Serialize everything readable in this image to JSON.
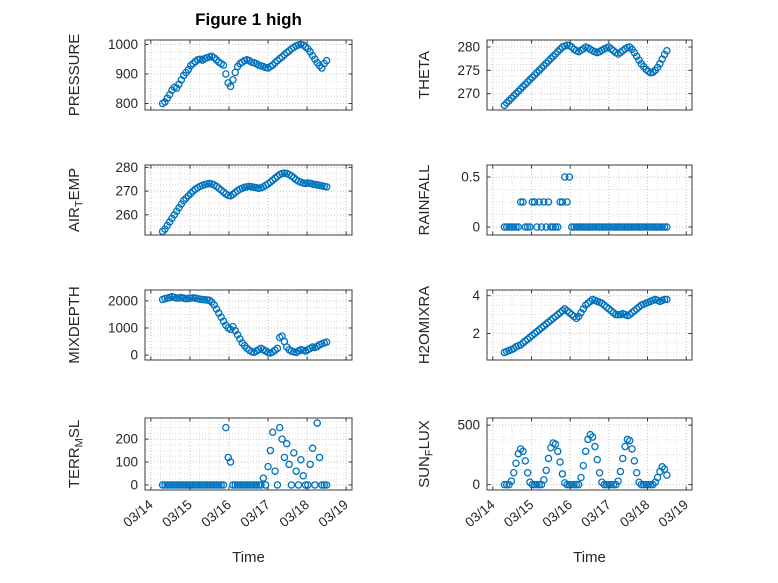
{
  "chart_data": {
    "type": "scatter",
    "title": "Figure 1 high",
    "x_label": "Time",
    "legend": "none",
    "grid": "dotted major and minor",
    "x_tick_labels": [
      "03/14",
      "03/15",
      "03/16",
      "03/17",
      "03/18",
      "03/19"
    ],
    "x_tick_values": [
      14,
      15,
      16,
      17,
      18,
      19
    ],
    "xlim": [
      13.85,
      19.15
    ],
    "x": [
      14.3,
      14.36,
      14.42,
      14.48,
      14.54,
      14.6,
      14.66,
      14.72,
      14.78,
      14.84,
      14.9,
      14.96,
      15.02,
      15.08,
      15.14,
      15.2,
      15.26,
      15.32,
      15.38,
      15.44,
      15.5,
      15.56,
      15.62,
      15.68,
      15.74,
      15.8,
      15.86,
      15.92,
      15.98,
      16.04,
      16.1,
      16.16,
      16.22,
      16.28,
      16.34,
      16.4,
      16.46,
      16.52,
      16.58,
      16.64,
      16.7,
      16.76,
      16.82,
      16.88,
      16.94,
      17.0,
      17.06,
      17.12,
      17.18,
      17.24,
      17.3,
      17.36,
      17.42,
      17.48,
      17.54,
      17.6,
      17.66,
      17.72,
      17.78,
      17.84,
      17.9,
      17.96,
      18.02,
      18.08,
      18.14,
      18.2,
      18.26,
      18.32,
      18.38,
      18.44,
      18.5
    ],
    "subplots": [
      {
        "name": "PRESSURE",
        "ylabel_parts": [
          {
            "text": "PRESSURE",
            "sub": false
          }
        ],
        "ytick_values": [
          800,
          900,
          1000
        ],
        "ytick_labels": [
          "800",
          "900",
          "1000"
        ],
        "ylim": [
          778,
          1015
        ],
        "values": [
          800,
          805,
          818,
          830,
          845,
          855,
          852,
          865,
          880,
          895,
          905,
          915,
          928,
          935,
          942,
          948,
          950,
          947,
          952,
          955,
          958,
          960,
          955,
          948,
          940,
          935,
          930,
          900,
          870,
          858,
          880,
          905,
          925,
          935,
          940,
          945,
          948,
          945,
          940,
          938,
          935,
          930,
          928,
          925,
          922,
          920,
          925,
          930,
          938,
          945,
          952,
          958,
          965,
          972,
          978,
          985,
          990,
          995,
          998,
          1000,
          998,
          992,
          985,
          975,
          962,
          950,
          938,
          928,
          920,
          935,
          945
        ]
      },
      {
        "name": "THETA",
        "ylabel_parts": [
          {
            "text": "THETA",
            "sub": false
          }
        ],
        "ytick_values": [
          270,
          275,
          280
        ],
        "ytick_labels": [
          "270",
          "275",
          "280"
        ],
        "ylim": [
          266.5,
          281.5
        ],
        "values": [
          267.5,
          268,
          268.5,
          269,
          269.5,
          270,
          270.5,
          271,
          271.5,
          272,
          272.5,
          273,
          273.5,
          274,
          274.5,
          275,
          275.5,
          276,
          276.5,
          277,
          277.5,
          278,
          278.5,
          279,
          279.5,
          280,
          280.2,
          280.4,
          280.3,
          280.0,
          279.5,
          279.2,
          279.0,
          279.3,
          279.6,
          280.0,
          279.8,
          279.5,
          279.2,
          279.0,
          278.8,
          279.0,
          279.3,
          279.6,
          279.8,
          280.0,
          279.6,
          279.2,
          278.8,
          278.5,
          278.8,
          279.2,
          279.6,
          279.9,
          280.0,
          279.5,
          278.8,
          278.0,
          277.2,
          276.4,
          275.8,
          275.2,
          274.8,
          274.5,
          274.6,
          275.0,
          275.6,
          276.4,
          277.4,
          278.4,
          279.2
        ]
      },
      {
        "name": "AIR_TEMP",
        "ylabel_parts": [
          {
            "text": "AIR",
            "sub": false
          },
          {
            "text": "T",
            "sub": true
          },
          {
            "text": "EMP",
            "sub": false
          }
        ],
        "ytick_values": [
          260,
          270,
          280
        ],
        "ytick_labels": [
          "260",
          "270",
          "280"
        ],
        "ylim": [
          251.5,
          281
        ],
        "values": [
          253,
          254,
          255.5,
          257,
          258.5,
          260,
          261.5,
          263,
          264.5,
          266,
          267,
          268,
          269,
          270,
          270.8,
          271.4,
          272,
          272.4,
          272.8,
          273,
          273.2,
          273,
          272.6,
          272,
          271.2,
          270.4,
          269.6,
          268.8,
          268.2,
          268.0,
          268.6,
          269.4,
          270.2,
          270.8,
          271.2,
          271.6,
          271.8,
          272,
          271.8,
          271.6,
          271.4,
          271.2,
          271.4,
          271.8,
          272.4,
          273,
          273.8,
          274.6,
          275.4,
          276.2,
          277,
          277.4,
          277.6,
          277.4,
          277,
          276.4,
          275.6,
          274.8,
          274.2,
          273.8,
          273.4,
          273.2,
          273.4,
          273.2,
          273,
          272.8,
          272.6,
          272.4,
          272.2,
          272,
          271.8
        ]
      },
      {
        "name": "RAINFALL",
        "ylabel_parts": [
          {
            "text": "RAINFALL",
            "sub": false
          }
        ],
        "ytick_values": [
          0,
          0.5
        ],
        "ytick_labels": [
          "0",
          "0.5"
        ],
        "ylim": [
          -0.08,
          0.62
        ],
        "values": [
          0,
          0,
          0,
          0,
          0,
          0,
          0,
          0.25,
          0.25,
          0,
          0,
          0,
          0.25,
          0.25,
          0,
          0.25,
          0,
          0.25,
          0,
          0.25,
          0,
          0,
          0,
          0,
          0.25,
          0.25,
          0.5,
          0.25,
          0.5,
          0,
          0,
          0,
          0,
          0,
          0,
          0,
          0,
          0,
          0,
          0,
          0,
          0,
          0,
          0,
          0,
          0,
          0,
          0,
          0,
          0,
          0,
          0,
          0,
          0,
          0,
          0,
          0,
          0,
          0,
          0,
          0,
          0,
          0,
          0,
          0,
          0,
          0,
          0,
          0,
          0,
          0
        ]
      },
      {
        "name": "MIXDEPTH",
        "ylabel_parts": [
          {
            "text": "MIXDEPTH",
            "sub": false
          }
        ],
        "ytick_values": [
          0,
          1000,
          2000
        ],
        "ytick_labels": [
          "0",
          "1000",
          "2000"
        ],
        "ylim": [
          -180,
          2400
        ],
        "values": [
          2050,
          2080,
          2100,
          2120,
          2150,
          2130,
          2100,
          2110,
          2120,
          2100,
          2080,
          2090,
          2100,
          2110,
          2100,
          2080,
          2060,
          2050,
          2040,
          2030,
          2020,
          1950,
          1850,
          1700,
          1550,
          1400,
          1250,
          1100,
          1000,
          950,
          1050,
          900,
          750,
          600,
          450,
          350,
          250,
          180,
          130,
          100,
          150,
          200,
          250,
          200,
          150,
          100,
          80,
          120,
          180,
          250,
          650,
          700,
          500,
          300,
          200,
          150,
          120,
          100,
          150,
          200,
          180,
          150,
          200,
          250,
          300,
          280,
          320,
          380,
          420,
          450,
          480
        ]
      },
      {
        "name": "H2OMIXRA",
        "ylabel_parts": [
          {
            "text": "H2OMIXRA",
            "sub": false
          }
        ],
        "ytick_values": [
          2,
          4
        ],
        "ytick_labels": [
          "2",
          "4"
        ],
        "ylim": [
          0.6,
          4.3
        ],
        "values": [
          1.0,
          1.05,
          1.1,
          1.15,
          1.2,
          1.3,
          1.35,
          1.4,
          1.5,
          1.6,
          1.7,
          1.8,
          1.9,
          2.0,
          2.1,
          2.2,
          2.3,
          2.4,
          2.5,
          2.6,
          2.7,
          2.8,
          2.9,
          3.0,
          3.1,
          3.2,
          3.3,
          3.2,
          3.1,
          3.0,
          2.9,
          2.8,
          2.9,
          3.1,
          3.3,
          3.5,
          3.6,
          3.7,
          3.8,
          3.75,
          3.7,
          3.65,
          3.6,
          3.5,
          3.4,
          3.3,
          3.2,
          3.1,
          3.0,
          3.0,
          3.0,
          3.05,
          3.0,
          2.95,
          3.0,
          3.1,
          3.2,
          3.3,
          3.4,
          3.5,
          3.55,
          3.6,
          3.65,
          3.7,
          3.75,
          3.8,
          3.75,
          3.7,
          3.75,
          3.8,
          3.8
        ]
      },
      {
        "name": "TERR_MSL",
        "ylabel_parts": [
          {
            "text": "TERR",
            "sub": false
          },
          {
            "text": "M",
            "sub": true
          },
          {
            "text": "SL",
            "sub": false
          }
        ],
        "ytick_values": [
          0,
          100,
          200
        ],
        "ytick_labels": [
          "0",
          "100",
          "200"
        ],
        "ylim": [
          -22,
          292
        ],
        "values": [
          0,
          0,
          0,
          0,
          0,
          0,
          0,
          0,
          0,
          0,
          0,
          0,
          0,
          0,
          0,
          0,
          0,
          0,
          0,
          0,
          0,
          0,
          0,
          0,
          0,
          0,
          0,
          250,
          120,
          100,
          0,
          0,
          0,
          0,
          0,
          0,
          0,
          0,
          0,
          0,
          0,
          0,
          0,
          30,
          0,
          80,
          150,
          230,
          60,
          0,
          250,
          200,
          120,
          180,
          90,
          0,
          140,
          60,
          0,
          110,
          40,
          0,
          0,
          90,
          160,
          0,
          270,
          120,
          0,
          0,
          0
        ]
      },
      {
        "name": "SUN_FLUX",
        "ylabel_parts": [
          {
            "text": "SUN",
            "sub": false
          },
          {
            "text": "F",
            "sub": true
          },
          {
            "text": "LUX",
            "sub": false
          }
        ],
        "ytick_values": [
          0,
          500
        ],
        "ytick_labels": [
          "0",
          "500"
        ],
        "ylim": [
          -45,
          560
        ],
        "values": [
          0,
          0,
          0,
          30,
          100,
          180,
          260,
          300,
          280,
          200,
          100,
          20,
          0,
          0,
          0,
          0,
          0,
          40,
          120,
          220,
          310,
          350,
          340,
          280,
          190,
          90,
          15,
          0,
          0,
          0,
          0,
          0,
          0,
          60,
          160,
          280,
          380,
          420,
          400,
          320,
          210,
          100,
          20,
          0,
          0,
          0,
          0,
          0,
          0,
          30,
          110,
          220,
          320,
          380,
          370,
          300,
          200,
          100,
          20,
          0,
          0,
          0,
          0,
          0,
          0,
          20,
          60,
          110,
          150,
          130,
          80
        ]
      }
    ],
    "style": {
      "marker_color": "#0072BD",
      "grid_color": "#c4c4c4",
      "minor_grid_color": "#dedede",
      "axis_color": "#3b3b3b",
      "text_color": "#262626"
    }
  }
}
